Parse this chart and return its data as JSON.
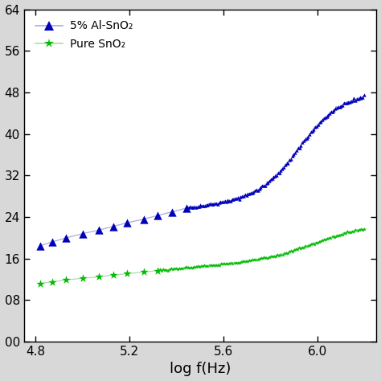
{
  "title": "",
  "xlabel": "log f(Hz)",
  "ylabel": "",
  "xlim": [
    4.75,
    6.25
  ],
  "ylim": [
    0,
    64
  ],
  "yticks": [
    0,
    8,
    16,
    24,
    32,
    40,
    48,
    56,
    64
  ],
  "ytick_labels": [
    "00",
    "08",
    "16",
    "24",
    "32",
    "40",
    "48",
    "56",
    "64"
  ],
  "xticks": [
    4.8,
    5.2,
    5.6,
    6.0
  ],
  "xtick_labels": [
    "4.8",
    "5.2",
    "5.6",
    "6.0"
  ],
  "legend1_label": "5% Al-SnO₂",
  "legend2_label": "Pure SnO₂",
  "line1_color": "#aaaadd",
  "line2_color": "#aaddaa",
  "marker1_color": "#0000bb",
  "marker2_color": "#00bb00",
  "background_color": "#ffffff",
  "outer_bg": "#d8d8d8"
}
